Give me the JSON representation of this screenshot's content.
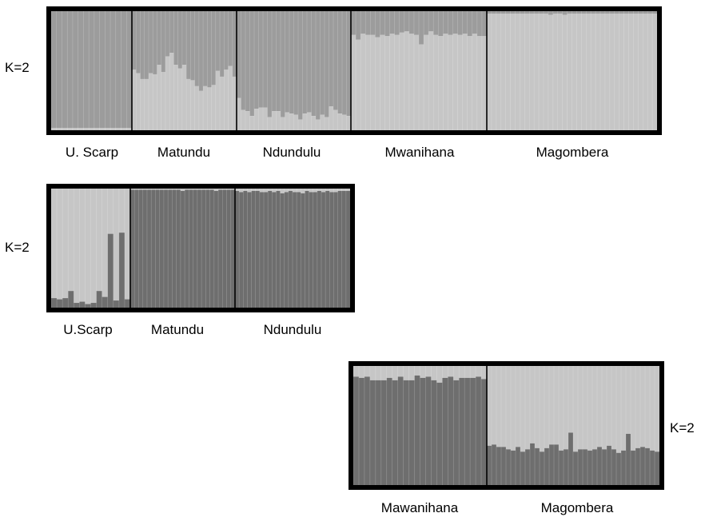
{
  "chart_data": [
    {
      "type": "stacked-bar",
      "k_label": "K=2",
      "colors": {
        "cluster_a": "#9c9c9c",
        "cluster_b": "#c6c6c6"
      },
      "populations": [
        {
          "name": "U. Scarp",
          "bottom_fraction": [
            0.02,
            0.02,
            0.02,
            0.02,
            0.02,
            0.02,
            0.02,
            0.02,
            0.02,
            0.02,
            0.02,
            0.02,
            0.02,
            0.02,
            0.02
          ]
        },
        {
          "name": "Matundu",
          "bottom_fraction": [
            0.51,
            0.48,
            0.43,
            0.43,
            0.48,
            0.47,
            0.55,
            0.49,
            0.62,
            0.65,
            0.55,
            0.52,
            0.55,
            0.43,
            0.42,
            0.37,
            0.33,
            0.37,
            0.36,
            0.38,
            0.5,
            0.45,
            0.51,
            0.54,
            0.45
          ]
        },
        {
          "name": "Ndundulu",
          "bottom_fraction": [
            0.27,
            0.17,
            0.16,
            0.12,
            0.18,
            0.19,
            0.19,
            0.11,
            0.16,
            0.16,
            0.11,
            0.15,
            0.14,
            0.13,
            0.09,
            0.14,
            0.15,
            0.12,
            0.09,
            0.13,
            0.11,
            0.2,
            0.17,
            0.14,
            0.13,
            0.12
          ]
        },
        {
          "name": "Mwanihana",
          "bottom_fraction": [
            0.8,
            0.76,
            0.81,
            0.8,
            0.8,
            0.78,
            0.8,
            0.79,
            0.81,
            0.8,
            0.82,
            0.83,
            0.81,
            0.8,
            0.72,
            0.8,
            0.83,
            0.8,
            0.79,
            0.81,
            0.8,
            0.81,
            0.8,
            0.81,
            0.79,
            0.81,
            0.79,
            0.79
          ]
        },
        {
          "name": "Magombera",
          "bottom_fraction": [
            0.98,
            0.98,
            0.98,
            0.98,
            0.98,
            0.98,
            0.98,
            0.98,
            0.98,
            0.98,
            0.98,
            0.98,
            0.98,
            0.97,
            0.98,
            0.98,
            0.97,
            0.98,
            0.98,
            0.98,
            0.98,
            0.98,
            0.98,
            0.98,
            0.98,
            0.98,
            0.98,
            0.98,
            0.98,
            0.98,
            0.98,
            0.98,
            0.98,
            0.98,
            0.98,
            0.98
          ]
        }
      ]
    },
    {
      "type": "stacked-bar",
      "k_label": "K=2",
      "colors": {
        "cluster_a": "#c6c6c6",
        "cluster_b": "#6e6e6e"
      },
      "populations": [
        {
          "name": "U.Scarp",
          "bottom_fraction": [
            0.08,
            0.07,
            0.08,
            0.14,
            0.04,
            0.05,
            0.03,
            0.04,
            0.14,
            0.09,
            0.62,
            0.06,
            0.63,
            0.07
          ]
        },
        {
          "name": "Matundu",
          "bottom_fraction": [
            0.99,
            0.99,
            0.99,
            0.99,
            0.99,
            0.99,
            0.99,
            0.99,
            0.99,
            0.99,
            0.99,
            0.99,
            0.98,
            0.99,
            0.99,
            0.99,
            0.99,
            0.99,
            0.99,
            0.99,
            0.98,
            0.99,
            0.99,
            0.99,
            0.99
          ]
        },
        {
          "name": "Ndundulu",
          "bottom_fraction": [
            0.98,
            0.97,
            0.98,
            0.97,
            0.98,
            0.98,
            0.97,
            0.97,
            0.98,
            0.97,
            0.98,
            0.96,
            0.97,
            0.98,
            0.97,
            0.97,
            0.96,
            0.98,
            0.97,
            0.97,
            0.98,
            0.97,
            0.98,
            0.97,
            0.97,
            0.98,
            0.98,
            0.98
          ]
        }
      ]
    },
    {
      "type": "stacked-bar",
      "k_label": "K=2",
      "colors": {
        "cluster_a": "#c6c6c6",
        "cluster_b": "#6e6e6e"
      },
      "populations": [
        {
          "name": "Mawanihana",
          "bottom_fraction": [
            0.91,
            0.9,
            0.91,
            0.88,
            0.88,
            0.88,
            0.9,
            0.88,
            0.91,
            0.88,
            0.88,
            0.92,
            0.9,
            0.91,
            0.88,
            0.86,
            0.9,
            0.91,
            0.88,
            0.9,
            0.9,
            0.9,
            0.91,
            0.89
          ]
        },
        {
          "name": "Magombera",
          "bottom_fraction": [
            0.33,
            0.34,
            0.32,
            0.32,
            0.3,
            0.29,
            0.32,
            0.28,
            0.3,
            0.35,
            0.31,
            0.28,
            0.31,
            0.34,
            0.34,
            0.29,
            0.3,
            0.44,
            0.28,
            0.3,
            0.3,
            0.29,
            0.3,
            0.32,
            0.3,
            0.33,
            0.3,
            0.27,
            0.29,
            0.43,
            0.29,
            0.31,
            0.32,
            0.31,
            0.29,
            0.28
          ]
        }
      ]
    }
  ]
}
